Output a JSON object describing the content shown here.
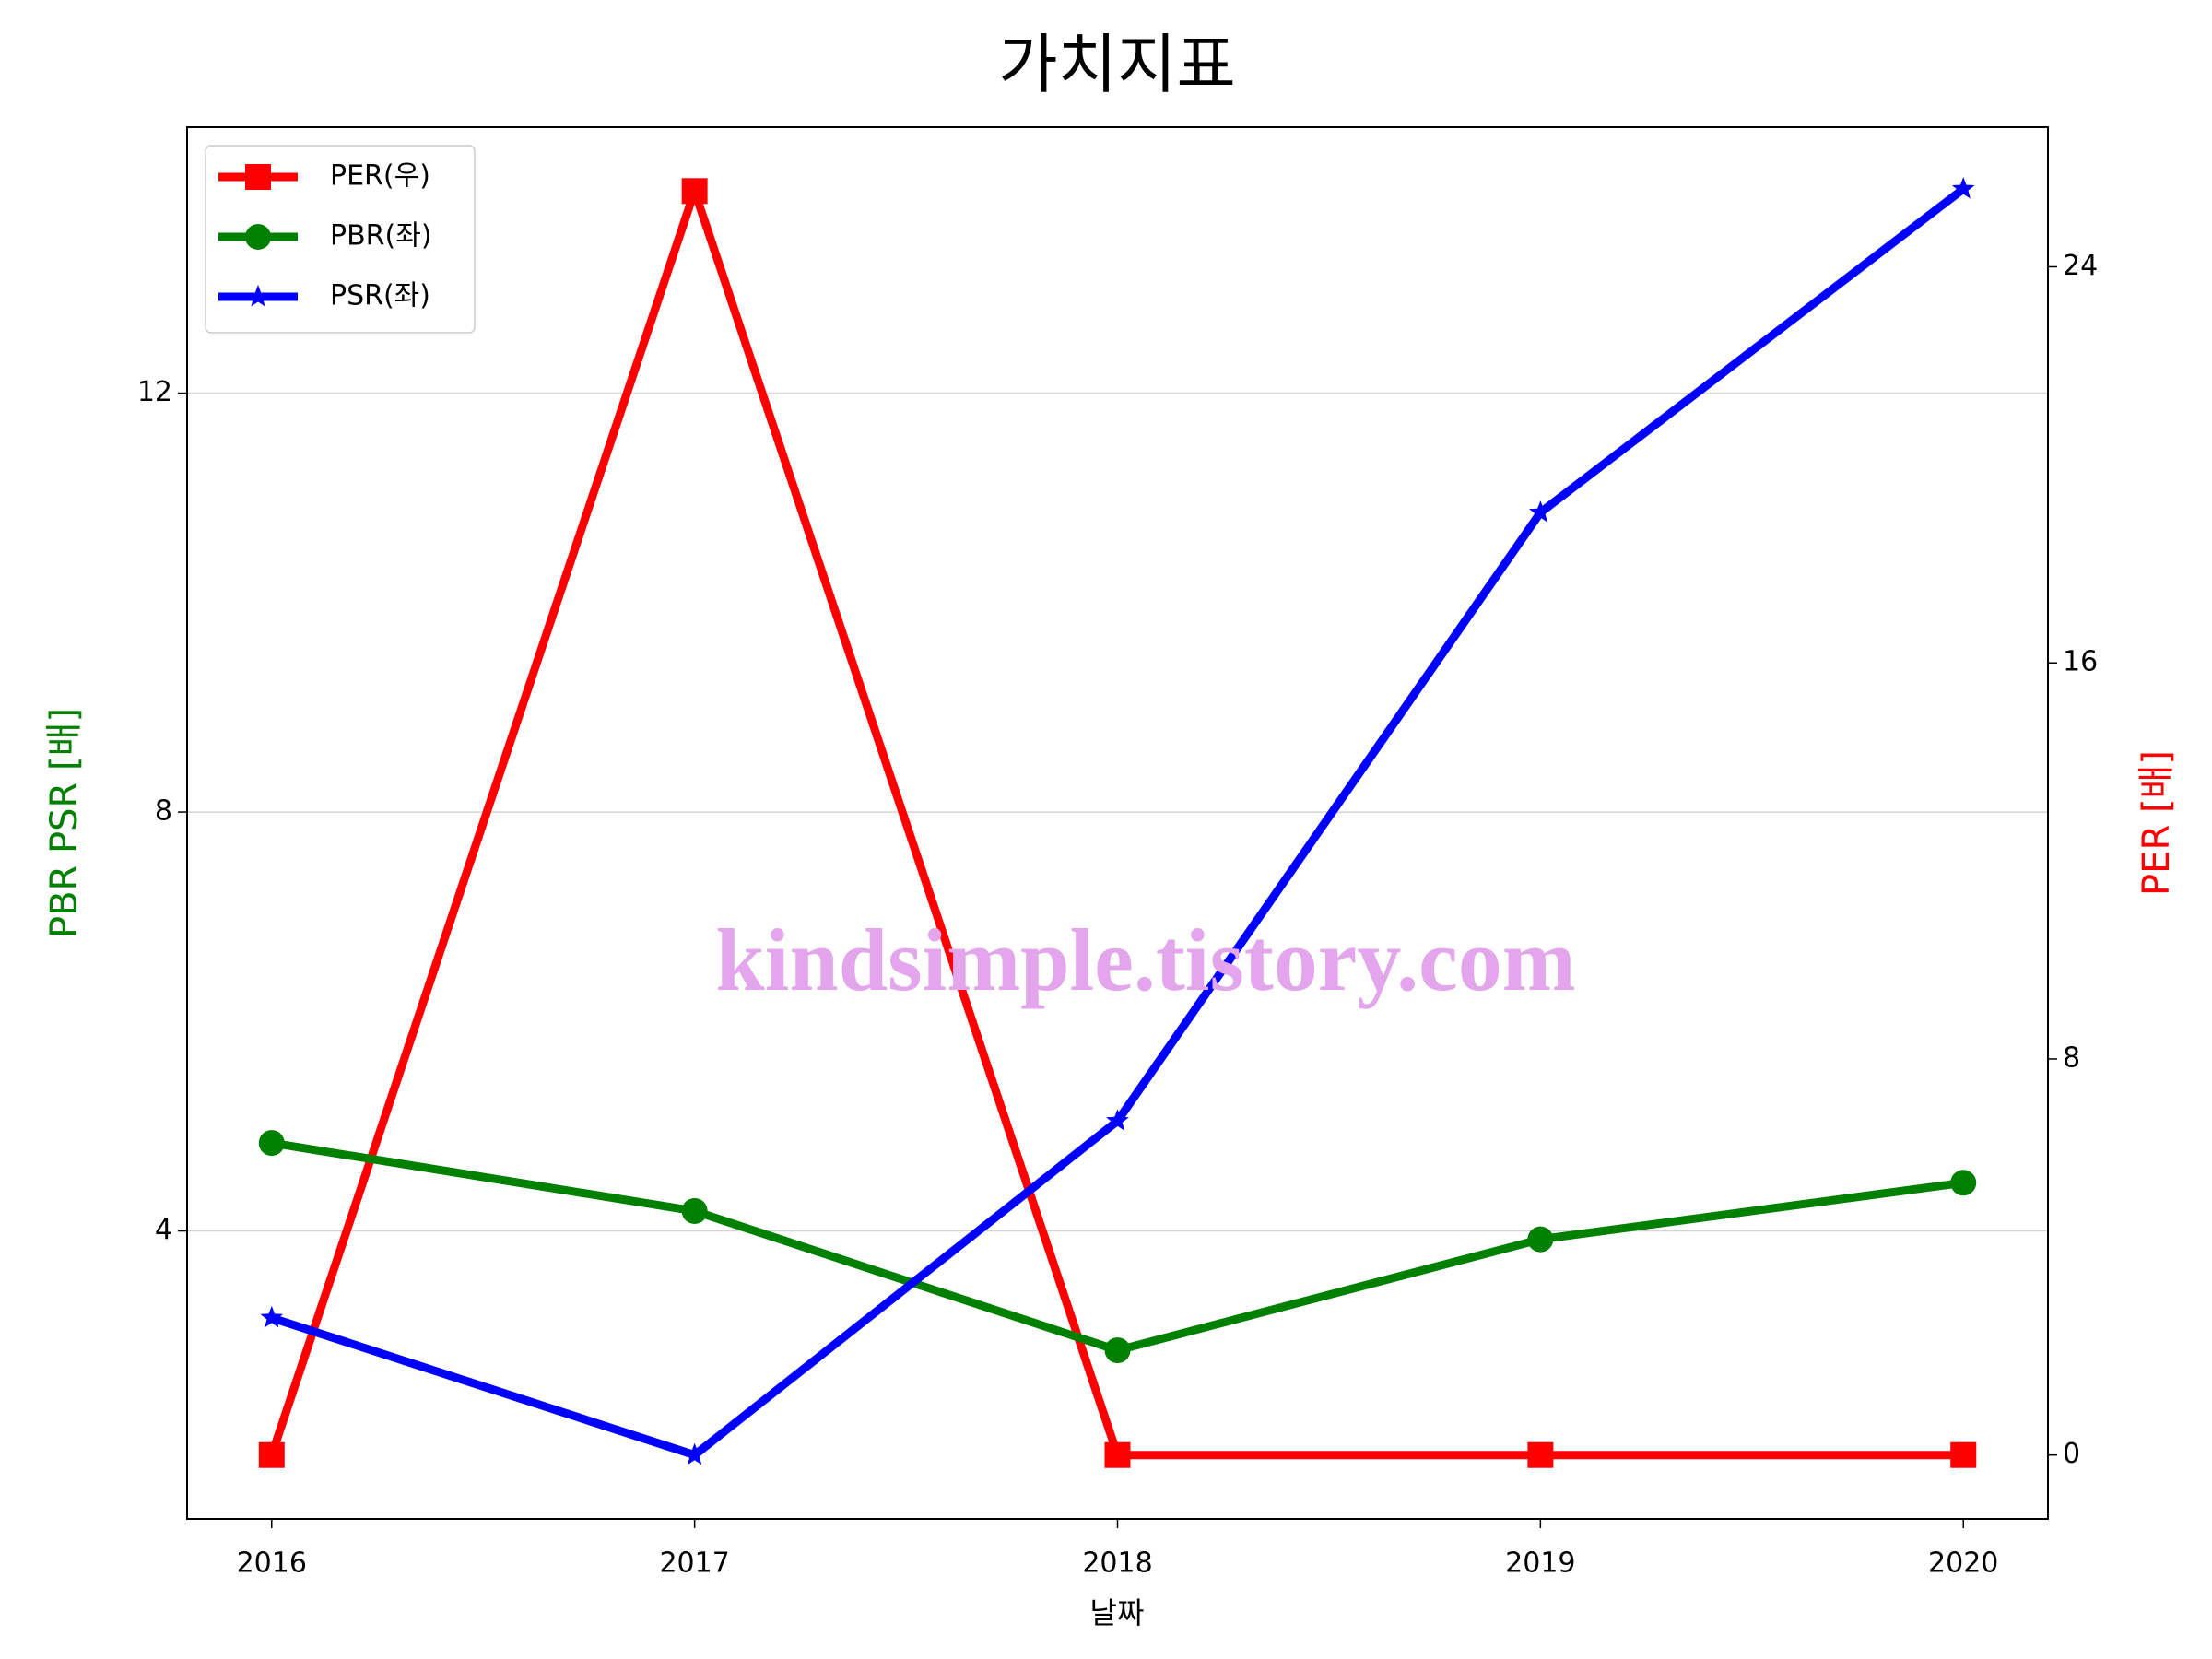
{
  "chart_data": {
    "type": "line",
    "title": "가치지표",
    "x_label": "날짜",
    "y_label": "PBR PSR [배]",
    "y2_label": "PER [배]",
    "y_label_color": "#008000",
    "y2_label_color": "#ff0000",
    "x": [
      2016,
      2017,
      2018,
      2019,
      2020
    ],
    "xlim": [
      2015.8,
      2020.2
    ],
    "xticks": [
      2016,
      2017,
      2018,
      2019,
      2020
    ],
    "ylim": [
      1.25,
      14.54
    ],
    "yticks": [
      4,
      8,
      12
    ],
    "y2lim": [
      -1.29,
      26.82
    ],
    "y2ticks": [
      0,
      8,
      16,
      24
    ],
    "grid": true,
    "legend": "upper left",
    "watermark": "kindsimple.tistory.com",
    "series": [
      {
        "name": "PER(우)",
        "color": "#ff0000",
        "marker": "square",
        "axis": "y2",
        "values": [
          0,
          25.53,
          0,
          0,
          0
        ]
      },
      {
        "name": "PBR(좌)",
        "color": "#008000",
        "marker": "circle",
        "values": [
          4.84,
          4.19,
          2.86,
          3.92,
          4.46
        ]
      },
      {
        "name": "PSR(좌)",
        "color": "#0000ff",
        "marker": "star",
        "values": [
          3.17,
          1.86,
          5.05,
          10.86,
          13.95
        ]
      }
    ]
  }
}
